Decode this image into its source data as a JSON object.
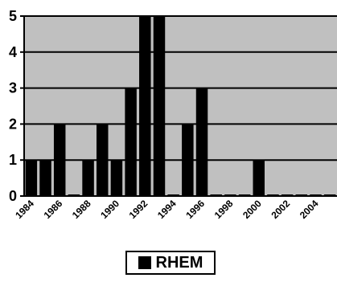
{
  "chart_data": {
    "type": "bar",
    "categories": [
      "1984",
      "1985",
      "1986",
      "1987",
      "1988",
      "1989",
      "1990",
      "1991",
      "1992",
      "1993",
      "1994",
      "1995",
      "1996",
      "1997",
      "1998",
      "1999",
      "2000",
      "2001",
      "2002",
      "2003",
      "2004",
      "2005"
    ],
    "x_tick_labels": [
      "1984",
      "1986",
      "1988",
      "1990",
      "1992",
      "1994",
      "1996",
      "1998",
      "2000",
      "2002",
      "2004"
    ],
    "series": [
      {
        "name": "RHEM",
        "values": [
          1,
          1,
          2,
          0,
          1,
          2,
          1,
          3,
          5,
          5,
          0,
          2,
          3,
          0,
          0,
          0,
          1,
          0,
          0,
          0,
          0,
          0
        ]
      }
    ],
    "ylim": [
      0,
      5
    ],
    "y_ticks": [
      "0",
      "1",
      "2",
      "3",
      "4",
      "5"
    ],
    "grid": true,
    "legend_position": "bottom",
    "colors": {
      "bar": "#000000",
      "plot_background": "#c0c0c0",
      "gridline": "#000000"
    }
  }
}
